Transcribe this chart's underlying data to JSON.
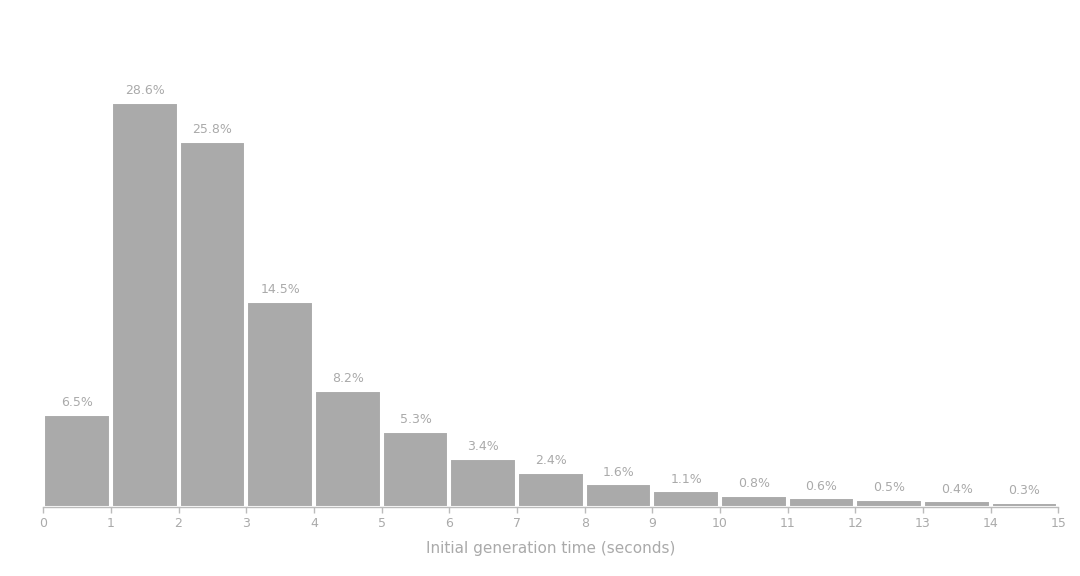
{
  "categories": [
    0,
    1,
    2,
    3,
    4,
    5,
    6,
    7,
    8,
    9,
    10,
    11,
    12,
    13,
    14
  ],
  "values": [
    6.5,
    28.6,
    25.8,
    14.5,
    8.2,
    5.3,
    3.4,
    2.4,
    1.6,
    1.1,
    0.8,
    0.6,
    0.5,
    0.4,
    0.3
  ],
  "labels": [
    "6.5%",
    "28.6%",
    "25.8%",
    "14.5%",
    "8.2%",
    "5.3%",
    "3.4%",
    "2.4%",
    "1.6%",
    "1.1%",
    "0.8%",
    "0.6%",
    "0.5%",
    "0.4%",
    "0.3%"
  ],
  "bar_color": "#aaaaaa",
  "bar_edge_color": "#ffffff",
  "background_color": "#ffffff",
  "xlabel": "Initial generation time (seconds)",
  "xlabel_fontsize": 11,
  "label_color": "#aaaaaa",
  "label_fontsize": 9,
  "xlim": [
    0,
    15
  ],
  "ylim": [
    0,
    33
  ],
  "tick_color": "#aaaaaa",
  "axis_color": "#bbbbbb",
  "bar_width": 0.97
}
